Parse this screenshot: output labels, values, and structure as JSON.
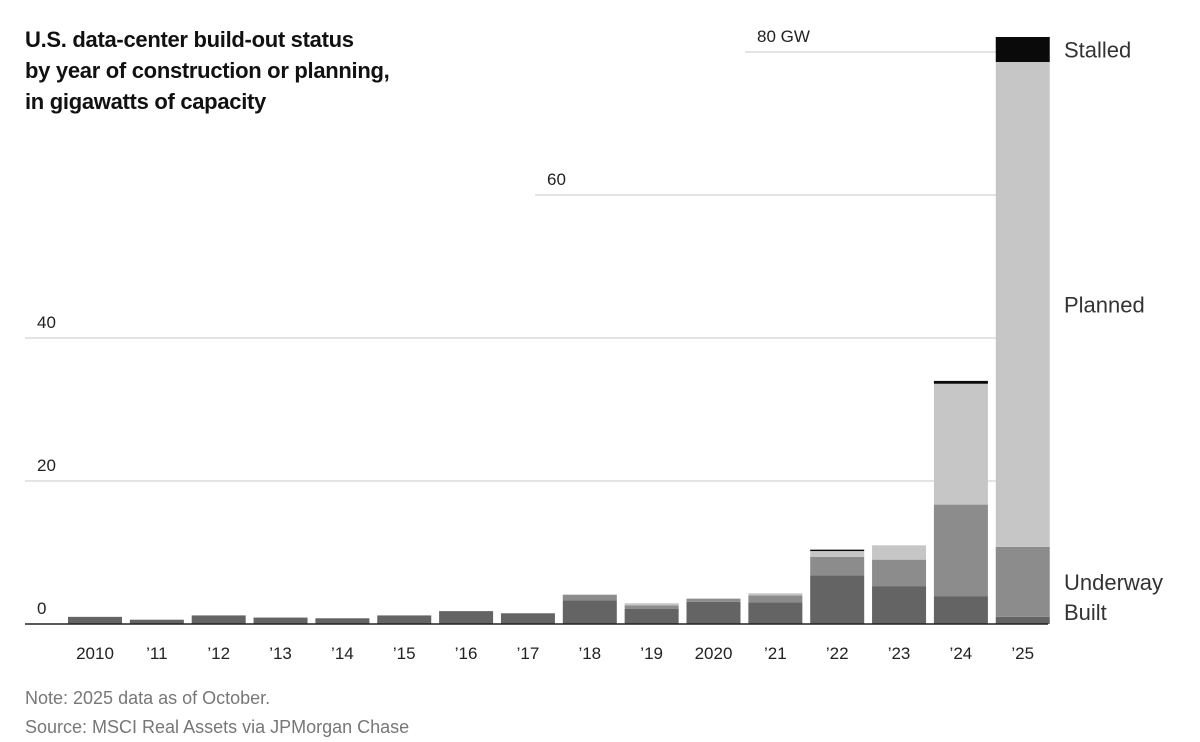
{
  "title_lines": [
    "U.S. data-center build-out status",
    "by year of construction or planning,",
    "in gigawatts of capacity"
  ],
  "footer": {
    "note": "Note: 2025 data as of October.",
    "source": "Source: MSCI Real Assets via JPMorgan Chase"
  },
  "colors": {
    "built": "#646464",
    "underway": "#8c8c8c",
    "planned": "#c6c6c6",
    "stalled": "#0a0a0a",
    "grid": "#d4d4d4",
    "axis": "#222222"
  },
  "chart_data": {
    "type": "bar",
    "stacked": true,
    "title": "U.S. data-center build-out status by year of construction or planning, in gigawatts of capacity",
    "xlabel": "",
    "ylabel": "",
    "ylim": [
      0,
      80
    ],
    "yticks": [
      {
        "value": 0,
        "label": "0"
      },
      {
        "value": 20,
        "label": "20"
      },
      {
        "value": 40,
        "label": "40"
      },
      {
        "value": 60,
        "label": "60"
      },
      {
        "value": 80,
        "label": "80 GW"
      }
    ],
    "categories": [
      "2010",
      "’11",
      "’12",
      "’13",
      "’14",
      "’15",
      "’16",
      "’17",
      "’18",
      "’19",
      "2020",
      "’21",
      "’22",
      "’23",
      "’24",
      "’25"
    ],
    "series": [
      {
        "name": "Built",
        "values": [
          1.0,
          0.6,
          1.2,
          0.9,
          0.8,
          1.2,
          1.8,
          1.5,
          3.3,
          2.1,
          3.1,
          3.0,
          6.8,
          5.3,
          3.9,
          1.0
        ]
      },
      {
        "name": "Underway",
        "values": [
          0,
          0,
          0,
          0,
          0,
          0,
          0,
          0,
          0.8,
          0.5,
          0.4,
          1.0,
          2.6,
          3.7,
          12.8,
          9.8
        ]
      },
      {
        "name": "Planned",
        "values": [
          0,
          0,
          0,
          0,
          0,
          0,
          0,
          0,
          0,
          0.3,
          0.1,
          0.3,
          0.8,
          2.0,
          16.9,
          67.8
        ]
      },
      {
        "name": "Stalled",
        "values": [
          0,
          0,
          0,
          0,
          0,
          0,
          0,
          0,
          0,
          0,
          0,
          0,
          0.2,
          0,
          0.4,
          3.5
        ]
      }
    ],
    "series_labels_position": "right of last bar",
    "grid": true,
    "note": "Note: 2025 data as of October.",
    "source": "Source: MSCI Real Assets via JPMorgan Chase"
  }
}
